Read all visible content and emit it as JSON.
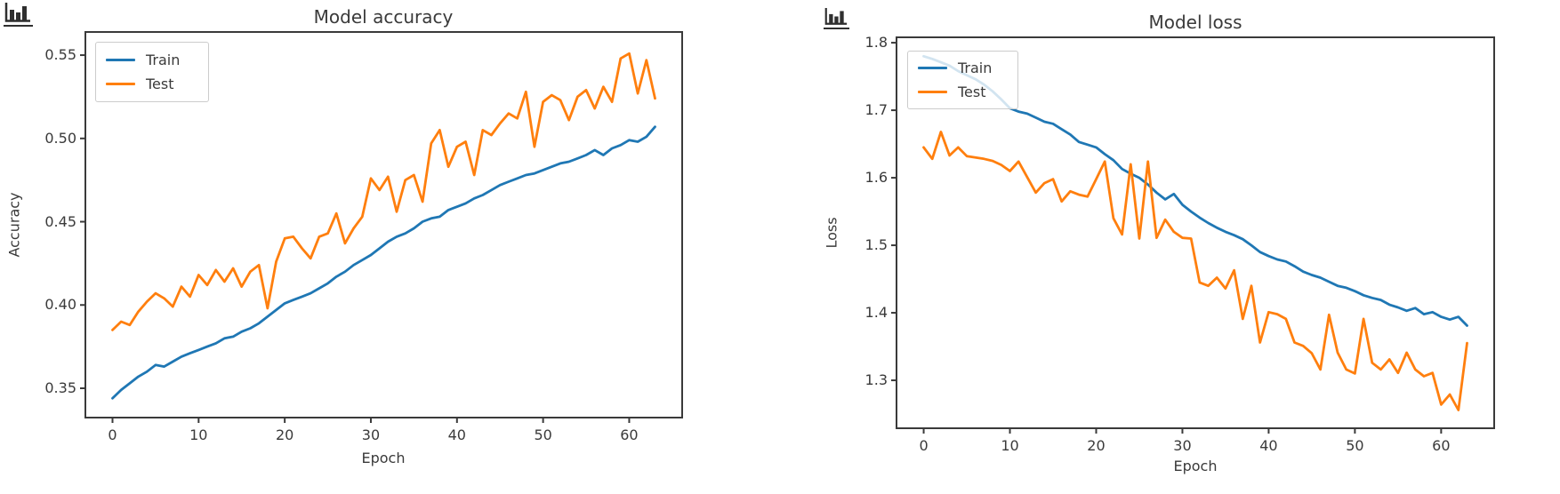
{
  "page": {
    "background": "#ffffff",
    "text_color": "#3a3a3a"
  },
  "icons": [
    {
      "name": "bar-chart-image-icon",
      "color": "#2f2f2f"
    },
    {
      "name": "bar-chart-image-icon",
      "color": "#2f2f2f"
    }
  ],
  "chart_data": [
    {
      "type": "line",
      "title": "Model accuracy",
      "xlabel": "Epoch",
      "ylabel": "Accuracy",
      "xlim": [
        -3.15,
        66.15
      ],
      "ylim": [
        0.3324,
        0.5639
      ],
      "xticks": [
        0,
        10,
        20,
        30,
        40,
        50,
        60
      ],
      "xtick_labels": [
        "0",
        "10",
        "20",
        "30",
        "40",
        "50",
        "60"
      ],
      "yticks": [
        0.35,
        0.4,
        0.45,
        0.5,
        0.55
      ],
      "ytick_labels": [
        "0.35",
        "0.40",
        "0.45",
        "0.50",
        "0.55"
      ],
      "grid": false,
      "legend": {
        "position": "upper-left",
        "entries": [
          {
            "name": "Train",
            "color": "#1f77b4"
          },
          {
            "name": "Test",
            "color": "#ff7f0e"
          }
        ]
      },
      "x": [
        0,
        1,
        2,
        3,
        4,
        5,
        6,
        7,
        8,
        9,
        10,
        11,
        12,
        13,
        14,
        15,
        16,
        17,
        18,
        19,
        20,
        21,
        22,
        23,
        24,
        25,
        26,
        27,
        28,
        29,
        30,
        31,
        32,
        33,
        34,
        35,
        36,
        37,
        38,
        39,
        40,
        41,
        42,
        43,
        44,
        45,
        46,
        47,
        48,
        49,
        50,
        51,
        52,
        53,
        54,
        55,
        56,
        57,
        58,
        59,
        60,
        61,
        62,
        63
      ],
      "series": [
        {
          "name": "Train",
          "color": "#1f77b4",
          "values": [
            0.344,
            0.349,
            0.353,
            0.357,
            0.36,
            0.364,
            0.363,
            0.366,
            0.369,
            0.371,
            0.373,
            0.375,
            0.377,
            0.38,
            0.381,
            0.384,
            0.386,
            0.389,
            0.393,
            0.397,
            0.401,
            0.403,
            0.405,
            0.407,
            0.41,
            0.413,
            0.417,
            0.42,
            0.424,
            0.427,
            0.43,
            0.434,
            0.438,
            0.441,
            0.443,
            0.446,
            0.45,
            0.452,
            0.453,
            0.457,
            0.459,
            0.461,
            0.464,
            0.466,
            0.469,
            0.472,
            0.474,
            0.476,
            0.478,
            0.479,
            0.481,
            0.483,
            0.485,
            0.486,
            0.488,
            0.49,
            0.493,
            0.49,
            0.494,
            0.496,
            0.499,
            0.498,
            0.501,
            0.507
          ]
        },
        {
          "name": "Test",
          "color": "#ff7f0e",
          "values": [
            0.385,
            0.39,
            0.388,
            0.396,
            0.402,
            0.407,
            0.404,
            0.399,
            0.411,
            0.405,
            0.418,
            0.412,
            0.421,
            0.414,
            0.422,
            0.411,
            0.42,
            0.424,
            0.398,
            0.426,
            0.44,
            0.441,
            0.434,
            0.428,
            0.441,
            0.443,
            0.455,
            0.437,
            0.446,
            0.453,
            0.476,
            0.469,
            0.477,
            0.456,
            0.475,
            0.478,
            0.462,
            0.497,
            0.505,
            0.483,
            0.495,
            0.498,
            0.478,
            0.505,
            0.502,
            0.509,
            0.515,
            0.512,
            0.528,
            0.495,
            0.522,
            0.526,
            0.523,
            0.511,
            0.525,
            0.529,
            0.518,
            0.531,
            0.522,
            0.548,
            0.551,
            0.527,
            0.547,
            0.524
          ]
        }
      ]
    },
    {
      "type": "line",
      "title": "Model loss",
      "xlabel": "Epoch",
      "ylabel": "Loss",
      "xlim": [
        -3.15,
        66.15
      ],
      "ylim": [
        1.229,
        1.808
      ],
      "xticks": [
        0,
        10,
        20,
        30,
        40,
        50,
        60
      ],
      "xtick_labels": [
        "0",
        "10",
        "20",
        "30",
        "40",
        "50",
        "60"
      ],
      "yticks": [
        1.3,
        1.4,
        1.5,
        1.6,
        1.7,
        1.8
      ],
      "ytick_labels": [
        "1.3",
        "1.4",
        "1.5",
        "1.6",
        "1.7",
        "1.8"
      ],
      "grid": false,
      "legend": {
        "position": "upper-left",
        "entries": [
          {
            "name": "Train",
            "color": "#1f77b4"
          },
          {
            "name": "Test",
            "color": "#ff7f0e"
          }
        ]
      },
      "x": [
        0,
        1,
        2,
        3,
        4,
        5,
        6,
        7,
        8,
        9,
        10,
        11,
        12,
        13,
        14,
        15,
        16,
        17,
        18,
        19,
        20,
        21,
        22,
        23,
        24,
        25,
        26,
        27,
        28,
        29,
        30,
        31,
        32,
        33,
        34,
        35,
        36,
        37,
        38,
        39,
        40,
        41,
        42,
        43,
        44,
        45,
        46,
        47,
        48,
        49,
        50,
        51,
        52,
        53,
        54,
        55,
        56,
        57,
        58,
        59,
        60,
        61,
        62,
        63
      ],
      "series": [
        {
          "name": "Train",
          "color": "#1f77b4",
          "values": [
            1.78,
            1.776,
            1.771,
            1.766,
            1.758,
            1.752,
            1.746,
            1.738,
            1.728,
            1.716,
            1.703,
            1.698,
            1.695,
            1.689,
            1.683,
            1.68,
            1.672,
            1.664,
            1.653,
            1.649,
            1.645,
            1.635,
            1.626,
            1.613,
            1.606,
            1.6,
            1.59,
            1.578,
            1.568,
            1.576,
            1.56,
            1.55,
            1.541,
            1.533,
            1.526,
            1.52,
            1.515,
            1.509,
            1.5,
            1.49,
            1.484,
            1.479,
            1.476,
            1.469,
            1.461,
            1.456,
            1.452,
            1.446,
            1.44,
            1.437,
            1.432,
            1.426,
            1.422,
            1.419,
            1.412,
            1.408,
            1.403,
            1.407,
            1.398,
            1.401,
            1.394,
            1.39,
            1.394,
            1.381
          ]
        },
        {
          "name": "Test",
          "color": "#ff7f0e",
          "values": [
            1.645,
            1.628,
            1.668,
            1.633,
            1.645,
            1.632,
            1.63,
            1.628,
            1.625,
            1.619,
            1.61,
            1.624,
            1.601,
            1.578,
            1.592,
            1.598,
            1.565,
            1.58,
            1.575,
            1.572,
            1.598,
            1.624,
            1.54,
            1.516,
            1.62,
            1.51,
            1.624,
            1.511,
            1.538,
            1.52,
            1.511,
            1.51,
            1.445,
            1.44,
            1.452,
            1.436,
            1.463,
            1.391,
            1.44,
            1.356,
            1.401,
            1.398,
            1.391,
            1.356,
            1.351,
            1.34,
            1.316,
            1.397,
            1.341,
            1.316,
            1.31,
            1.391,
            1.326,
            1.316,
            1.331,
            1.311,
            1.341,
            1.316,
            1.306,
            1.311,
            1.264,
            1.279,
            1.256,
            1.355
          ]
        }
      ]
    }
  ]
}
